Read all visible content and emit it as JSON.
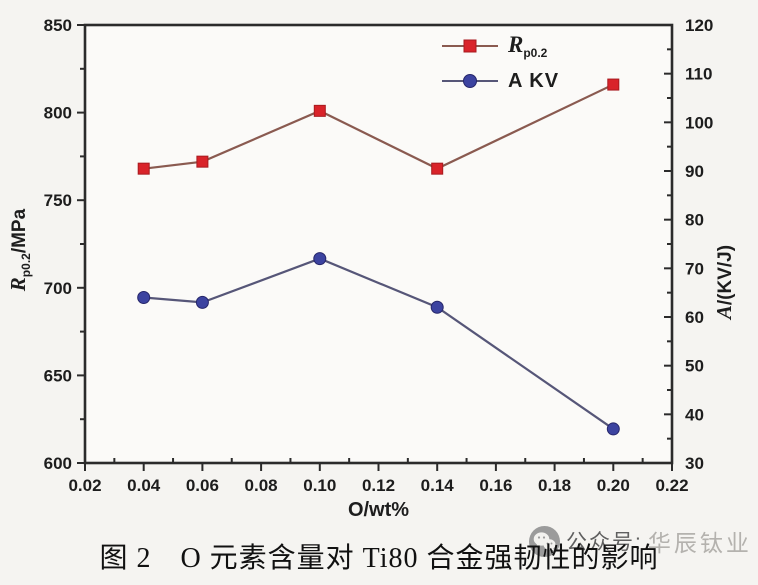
{
  "page": {
    "background": "#f5f4f1"
  },
  "caption": {
    "text": "图 2　O 元素含量对 Ti80 合金强韧性的影响"
  },
  "watermark": {
    "prefix": "公众号:",
    "name": "华辰钛业",
    "icon": "wechat-icon"
  },
  "chart_data": {
    "type": "line",
    "title": "",
    "xlabel": "O/wt%",
    "ylabel_left": "Rp0.2/MPa",
    "ylabel_right": "A/(KV/J)",
    "ylabel_left_parts": {
      "main": "R",
      "sub": "p0.2",
      "unit": "/MPa"
    },
    "ylabel_right_parts": {
      "main": "A",
      "unit": "/(KV/J)"
    },
    "xlim": [
      0.02,
      0.22
    ],
    "ylim_left": [
      600,
      850
    ],
    "ylim_right": [
      30,
      120
    ],
    "x_tick_labels": [
      "0.02",
      "0.04",
      "0.06",
      "0.08",
      "0.10",
      "0.12",
      "0.14",
      "0.16",
      "0.18",
      "0.20",
      "0.22"
    ],
    "y_left_ticks": [
      600,
      650,
      700,
      750,
      800,
      850
    ],
    "y_right_ticks": [
      30,
      40,
      50,
      60,
      70,
      80,
      90,
      100,
      110,
      120
    ],
    "grid": false,
    "legend_position": "inside-top-center",
    "x": [
      0.04,
      0.06,
      0.1,
      0.14,
      0.2
    ],
    "series": [
      {
        "name": "Rp0.2",
        "legend_main": "R",
        "legend_sub": "p0.2",
        "axis": "left",
        "marker": "square",
        "line_color": "#8a5a50",
        "marker_color": "#d9232a",
        "marker_edge": "#a81a1f",
        "values": [
          768,
          772,
          801,
          768,
          816
        ]
      },
      {
        "name": "A KV",
        "legend_main": "A KV",
        "legend_sub": "",
        "axis": "right",
        "marker": "circle",
        "line_color": "#565678",
        "marker_color": "#3c43a0",
        "marker_edge": "#26266a",
        "values": [
          64,
          63,
          72,
          62,
          37
        ]
      }
    ],
    "axis_color": "#2b2b2b",
    "plot_bg": "#fbfaf8",
    "tick_label_color": "#1d1d1d"
  }
}
